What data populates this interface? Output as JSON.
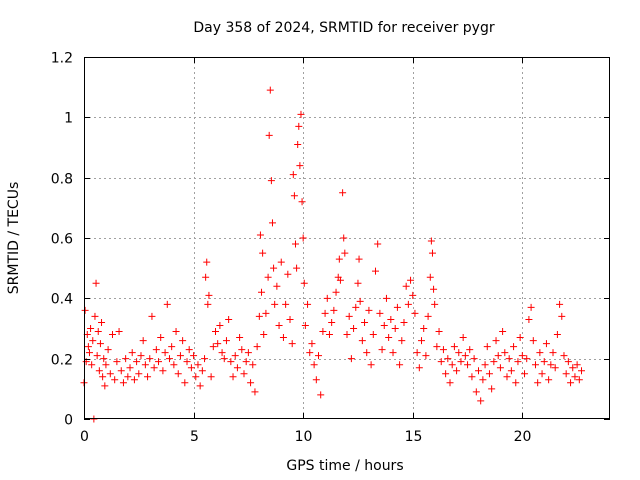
{
  "chart_data": {
    "type": "scatter",
    "title": "Day 358 of 2024, SRMTID for receiver pygr",
    "xlabel": "GPS time / hours",
    "ylabel": "SRMTID / TECUs",
    "xlim": [
      0,
      24
    ],
    "ylim": [
      0,
      1.2
    ],
    "xticks": [
      0,
      5,
      10,
      15,
      20
    ],
    "xtick_labels": [
      "0",
      "5",
      "10",
      "15",
      "20"
    ],
    "yticks": [
      0,
      0.2,
      0.4,
      0.6,
      0.8,
      1.0,
      1.2
    ],
    "ytick_labels": [
      "0",
      "0.2",
      "0.4",
      "0.6",
      "0.8",
      "1",
      "1.2"
    ],
    "grid": true,
    "marker": "+",
    "color": "#ff0000",
    "series": [
      {
        "name": "SRMTID",
        "points": [
          [
            0.0,
            0.12
          ],
          [
            0.05,
            0.36
          ],
          [
            0.1,
            0.19
          ],
          [
            0.15,
            0.28
          ],
          [
            0.2,
            0.24
          ],
          [
            0.25,
            0.22
          ],
          [
            0.3,
            0.3
          ],
          [
            0.35,
            0.18
          ],
          [
            0.4,
            0.26
          ],
          [
            0.45,
            0.0
          ],
          [
            0.5,
            0.34
          ],
          [
            0.55,
            0.45
          ],
          [
            0.6,
            0.21
          ],
          [
            0.65,
            0.29
          ],
          [
            0.7,
            0.16
          ],
          [
            0.75,
            0.25
          ],
          [
            0.8,
            0.32
          ],
          [
            0.85,
            0.14
          ],
          [
            0.9,
            0.2
          ],
          [
            0.95,
            0.11
          ],
          [
            1.0,
            0.18
          ],
          [
            1.1,
            0.23
          ],
          [
            1.2,
            0.15
          ],
          [
            1.3,
            0.28
          ],
          [
            1.4,
            0.13
          ],
          [
            1.5,
            0.19
          ],
          [
            1.6,
            0.29
          ],
          [
            1.7,
            0.16
          ],
          [
            1.8,
            0.12
          ],
          [
            1.9,
            0.2
          ],
          [
            2.0,
            0.14
          ],
          [
            2.1,
            0.17
          ],
          [
            2.2,
            0.22
          ],
          [
            2.3,
            0.13
          ],
          [
            2.4,
            0.19
          ],
          [
            2.5,
            0.15
          ],
          [
            2.6,
            0.21
          ],
          [
            2.7,
            0.26
          ],
          [
            2.8,
            0.18
          ],
          [
            2.9,
            0.14
          ],
          [
            3.0,
            0.2
          ],
          [
            3.1,
            0.34
          ],
          [
            3.2,
            0.17
          ],
          [
            3.3,
            0.23
          ],
          [
            3.4,
            0.19
          ],
          [
            3.5,
            0.27
          ],
          [
            3.6,
            0.16
          ],
          [
            3.7,
            0.22
          ],
          [
            3.8,
            0.38
          ],
          [
            3.9,
            0.2
          ],
          [
            4.0,
            0.24
          ],
          [
            4.1,
            0.18
          ],
          [
            4.2,
            0.29
          ],
          [
            4.3,
            0.15
          ],
          [
            4.4,
            0.21
          ],
          [
            4.5,
            0.26
          ],
          [
            4.6,
            0.12
          ],
          [
            4.7,
            0.19
          ],
          [
            4.8,
            0.23
          ],
          [
            4.9,
            0.17
          ],
          [
            5.0,
            0.21
          ],
          [
            5.1,
            0.14
          ],
          [
            5.2,
            0.18
          ],
          [
            5.3,
            0.11
          ],
          [
            5.4,
            0.16
          ],
          [
            5.5,
            0.2
          ],
          [
            5.55,
            0.47
          ],
          [
            5.6,
            0.52
          ],
          [
            5.65,
            0.38
          ],
          [
            5.7,
            0.41
          ],
          [
            5.8,
            0.14
          ],
          [
            5.9,
            0.24
          ],
          [
            6.0,
            0.29
          ],
          [
            6.1,
            0.25
          ],
          [
            6.2,
            0.31
          ],
          [
            6.3,
            0.22
          ],
          [
            6.4,
            0.2
          ],
          [
            6.5,
            0.26
          ],
          [
            6.6,
            0.33
          ],
          [
            6.7,
            0.19
          ],
          [
            6.8,
            0.14
          ],
          [
            6.9,
            0.21
          ],
          [
            7.0,
            0.17
          ],
          [
            7.1,
            0.27
          ],
          [
            7.2,
            0.23
          ],
          [
            7.3,
            0.15
          ],
          [
            7.4,
            0.19
          ],
          [
            7.5,
            0.22
          ],
          [
            7.6,
            0.12
          ],
          [
            7.7,
            0.18
          ],
          [
            7.8,
            0.09
          ],
          [
            7.9,
            0.24
          ],
          [
            8.0,
            0.34
          ],
          [
            8.05,
            0.61
          ],
          [
            8.1,
            0.42
          ],
          [
            8.15,
            0.55
          ],
          [
            8.2,
            0.28
          ],
          [
            8.3,
            0.35
          ],
          [
            8.4,
            0.47
          ],
          [
            8.45,
            0.94
          ],
          [
            8.5,
            1.09
          ],
          [
            8.55,
            0.79
          ],
          [
            8.6,
            0.65
          ],
          [
            8.65,
            0.5
          ],
          [
            8.7,
            0.38
          ],
          [
            8.8,
            0.44
          ],
          [
            8.9,
            0.31
          ],
          [
            9.0,
            0.52
          ],
          [
            9.1,
            0.27
          ],
          [
            9.2,
            0.38
          ],
          [
            9.3,
            0.48
          ],
          [
            9.4,
            0.33
          ],
          [
            9.5,
            0.25
          ],
          [
            9.55,
            0.81
          ],
          [
            9.6,
            0.74
          ],
          [
            9.65,
            0.58
          ],
          [
            9.7,
            0.5
          ],
          [
            9.75,
            0.91
          ],
          [
            9.8,
            0.97
          ],
          [
            9.85,
            0.84
          ],
          [
            9.9,
            1.01
          ],
          [
            9.95,
            0.72
          ],
          [
            10.0,
            0.6
          ],
          [
            10.05,
            0.45
          ],
          [
            10.1,
            0.31
          ],
          [
            10.2,
            0.38
          ],
          [
            10.3,
            0.22
          ],
          [
            10.4,
            0.25
          ],
          [
            10.5,
            0.18
          ],
          [
            10.6,
            0.13
          ],
          [
            10.7,
            0.21
          ],
          [
            10.8,
            0.08
          ],
          [
            10.9,
            0.29
          ],
          [
            11.0,
            0.35
          ],
          [
            11.1,
            0.4
          ],
          [
            11.2,
            0.28
          ],
          [
            11.3,
            0.32
          ],
          [
            11.4,
            0.36
          ],
          [
            11.5,
            0.42
          ],
          [
            11.6,
            0.47
          ],
          [
            11.65,
            0.53
          ],
          [
            11.7,
            0.46
          ],
          [
            11.8,
            0.75
          ],
          [
            11.85,
            0.6
          ],
          [
            11.9,
            0.55
          ],
          [
            12.0,
            0.28
          ],
          [
            12.1,
            0.34
          ],
          [
            12.2,
            0.2
          ],
          [
            12.3,
            0.3
          ],
          [
            12.4,
            0.37
          ],
          [
            12.5,
            0.45
          ],
          [
            12.55,
            0.53
          ],
          [
            12.6,
            0.39
          ],
          [
            12.7,
            0.26
          ],
          [
            12.8,
            0.32
          ],
          [
            12.9,
            0.22
          ],
          [
            13.0,
            0.36
          ],
          [
            13.1,
            0.18
          ],
          [
            13.2,
            0.28
          ],
          [
            13.3,
            0.49
          ],
          [
            13.4,
            0.58
          ],
          [
            13.5,
            0.35
          ],
          [
            13.6,
            0.23
          ],
          [
            13.7,
            0.31
          ],
          [
            13.8,
            0.4
          ],
          [
            13.9,
            0.27
          ],
          [
            14.0,
            0.33
          ],
          [
            14.1,
            0.22
          ],
          [
            14.2,
            0.3
          ],
          [
            14.3,
            0.37
          ],
          [
            14.4,
            0.18
          ],
          [
            14.5,
            0.26
          ],
          [
            14.6,
            0.32
          ],
          [
            14.7,
            0.44
          ],
          [
            14.8,
            0.38
          ],
          [
            14.9,
            0.46
          ],
          [
            15.0,
            0.41
          ],
          [
            15.1,
            0.35
          ],
          [
            15.2,
            0.22
          ],
          [
            15.3,
            0.17
          ],
          [
            15.4,
            0.26
          ],
          [
            15.5,
            0.3
          ],
          [
            15.6,
            0.21
          ],
          [
            15.7,
            0.34
          ],
          [
            15.8,
            0.47
          ],
          [
            15.85,
            0.59
          ],
          [
            15.9,
            0.55
          ],
          [
            15.95,
            0.43
          ],
          [
            16.0,
            0.38
          ],
          [
            16.1,
            0.24
          ],
          [
            16.2,
            0.29
          ],
          [
            16.3,
            0.19
          ],
          [
            16.4,
            0.23
          ],
          [
            16.5,
            0.15
          ],
          [
            16.6,
            0.2
          ],
          [
            16.7,
            0.12
          ],
          [
            16.8,
            0.18
          ],
          [
            16.9,
            0.24
          ],
          [
            17.0,
            0.16
          ],
          [
            17.1,
            0.22
          ],
          [
            17.2,
            0.19
          ],
          [
            17.3,
            0.27
          ],
          [
            17.4,
            0.21
          ],
          [
            17.5,
            0.18
          ],
          [
            17.6,
            0.23
          ],
          [
            17.7,
            0.14
          ],
          [
            17.8,
            0.2
          ],
          [
            17.9,
            0.09
          ],
          [
            18.0,
            0.16
          ],
          [
            18.1,
            0.06
          ],
          [
            18.2,
            0.13
          ],
          [
            18.3,
            0.18
          ],
          [
            18.4,
            0.24
          ],
          [
            18.5,
            0.15
          ],
          [
            18.6,
            0.1
          ],
          [
            18.7,
            0.19
          ],
          [
            18.8,
            0.26
          ],
          [
            18.9,
            0.21
          ],
          [
            19.0,
            0.17
          ],
          [
            19.1,
            0.29
          ],
          [
            19.2,
            0.22
          ],
          [
            19.3,
            0.14
          ],
          [
            19.4,
            0.2
          ],
          [
            19.5,
            0.16
          ],
          [
            19.6,
            0.24
          ],
          [
            19.7,
            0.12
          ],
          [
            19.8,
            0.19
          ],
          [
            19.9,
            0.27
          ],
          [
            20.0,
            0.21
          ],
          [
            20.1,
            0.15
          ],
          [
            20.2,
            0.2
          ],
          [
            20.3,
            0.33
          ],
          [
            20.4,
            0.37
          ],
          [
            20.5,
            0.26
          ],
          [
            20.6,
            0.18
          ],
          [
            20.7,
            0.12
          ],
          [
            20.8,
            0.22
          ],
          [
            20.9,
            0.15
          ],
          [
            21.0,
            0.19
          ],
          [
            21.1,
            0.25
          ],
          [
            21.2,
            0.13
          ],
          [
            21.3,
            0.18
          ],
          [
            21.4,
            0.22
          ],
          [
            21.5,
            0.17
          ],
          [
            21.6,
            0.28
          ],
          [
            21.7,
            0.38
          ],
          [
            21.8,
            0.34
          ],
          [
            21.9,
            0.21
          ],
          [
            22.0,
            0.15
          ],
          [
            22.1,
            0.19
          ],
          [
            22.2,
            0.12
          ],
          [
            22.3,
            0.17
          ],
          [
            22.4,
            0.14
          ],
          [
            22.5,
            0.18
          ],
          [
            22.6,
            0.13
          ],
          [
            22.7,
            0.16
          ]
        ]
      }
    ]
  }
}
